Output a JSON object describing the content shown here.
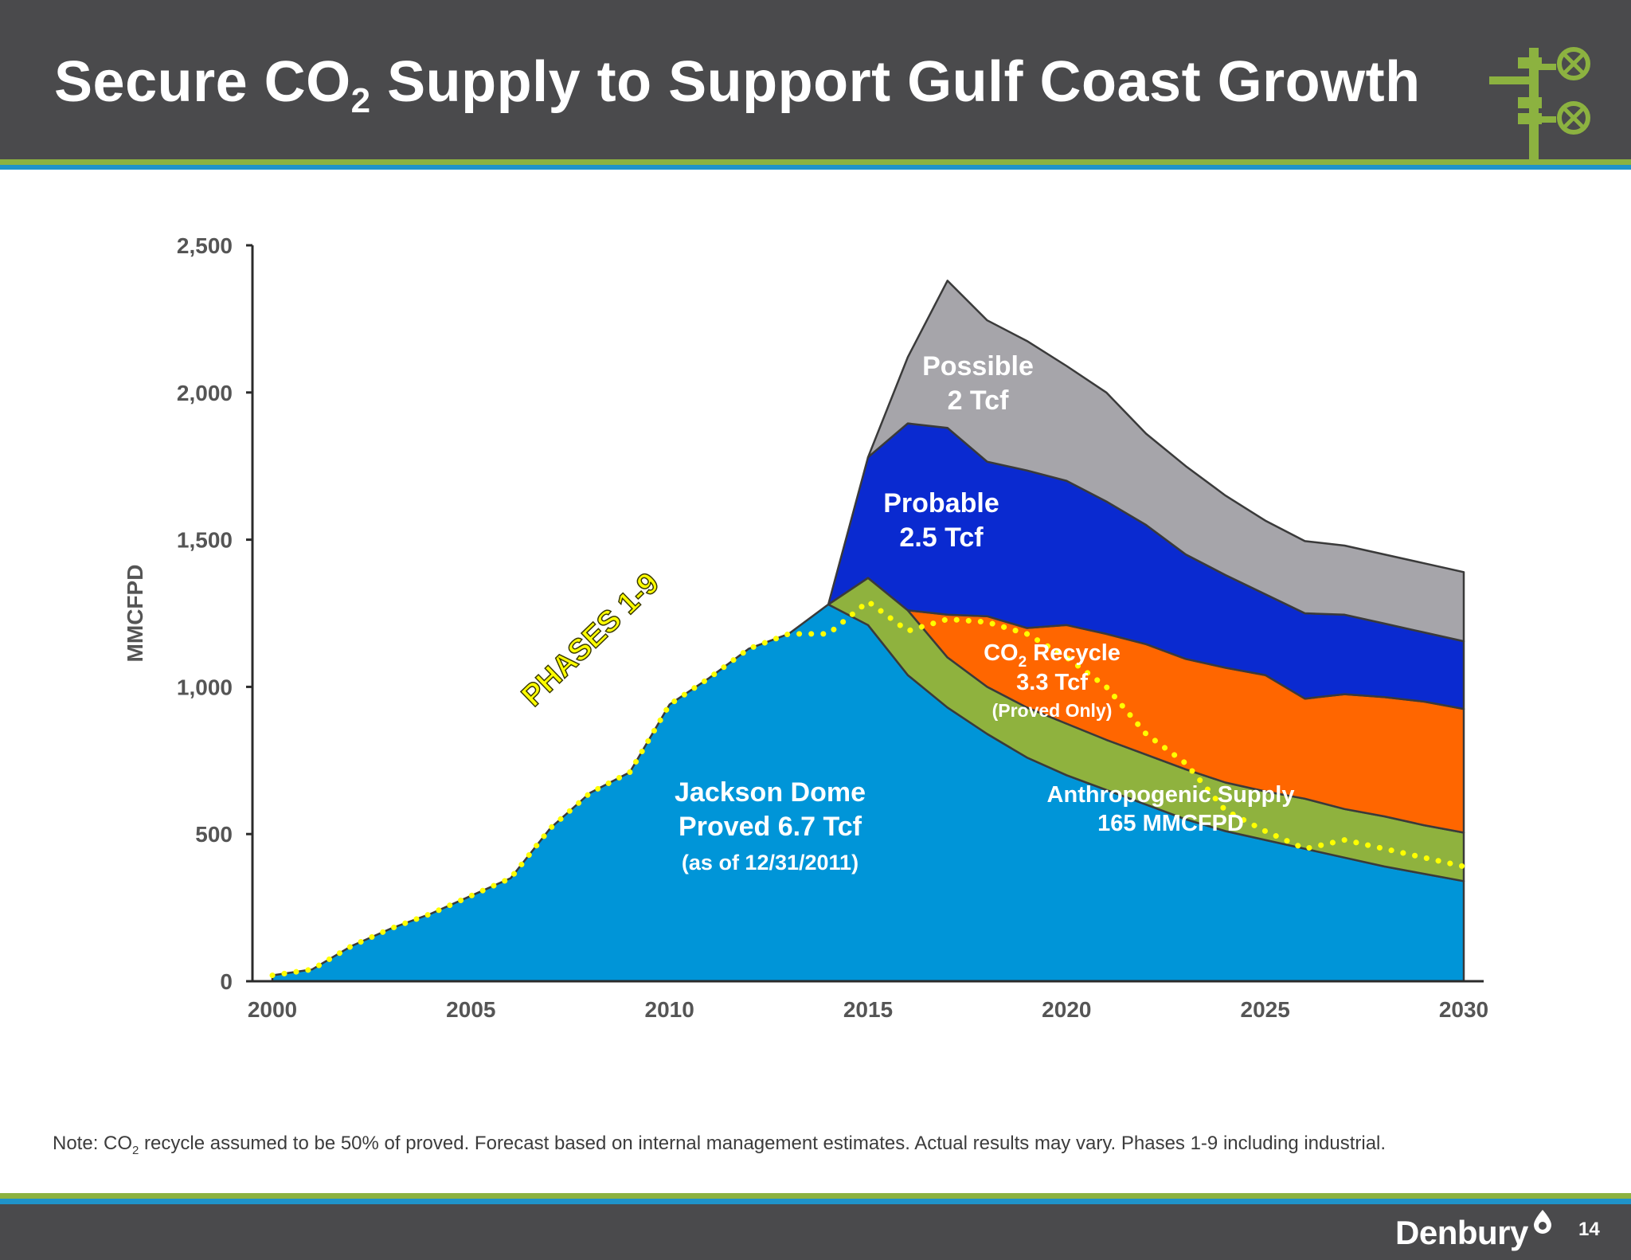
{
  "header": {
    "title_before": "Secure CO",
    "title_sub": "2",
    "title_after": " Supply to Support Gulf Coast Growth",
    "logo_icon": "pipeline-valve-icon"
  },
  "colors": {
    "header_bg": "#4a4a4c",
    "stripe_green": "#8cb240",
    "stripe_blue": "#1f93c9",
    "jackson": "#0095d8",
    "anthropogenic": "#8fb23e",
    "recycle": "#ff6600",
    "probable": "#0a2ad0",
    "possible": "#a6a5aa",
    "phases_line": "#ffff00"
  },
  "chart_data": {
    "type": "area",
    "stacked": true,
    "xlabel": "",
    "ylabel": "MMCFPD",
    "xlim": [
      2000,
      2030
    ],
    "ylim": [
      0,
      2500
    ],
    "x_ticks": [
      2000,
      2005,
      2010,
      2015,
      2020,
      2025,
      2030
    ],
    "y_ticks": [
      0,
      500,
      1000,
      1500,
      2000,
      2500
    ],
    "grid": false,
    "x": [
      2000,
      2001,
      2002,
      2003,
      2004,
      2005,
      2006,
      2007,
      2008,
      2009,
      2010,
      2011,
      2012,
      2013,
      2014,
      2015,
      2016,
      2017,
      2018,
      2019,
      2020,
      2021,
      2022,
      2023,
      2024,
      2025,
      2026,
      2027,
      2028,
      2029,
      2030
    ],
    "series": [
      {
        "name": "Jackson Dome",
        "values": [
          20,
          40,
          120,
          180,
          230,
          290,
          350,
          520,
          640,
          710,
          940,
          1030,
          1130,
          1180,
          1280,
          1210,
          1040,
          930,
          840,
          760,
          700,
          650,
          600,
          550,
          510,
          480,
          450,
          420,
          390,
          365,
          340
        ]
      },
      {
        "name": "Anthropogenic Supply",
        "values": [
          0,
          0,
          0,
          0,
          0,
          0,
          0,
          0,
          0,
          0,
          0,
          0,
          0,
          0,
          0,
          160,
          220,
          170,
          160,
          170,
          175,
          170,
          170,
          170,
          165,
          165,
          170,
          165,
          170,
          165,
          165
        ]
      },
      {
        "name": "CO2 Recycle",
        "values": [
          0,
          0,
          0,
          0,
          0,
          0,
          0,
          0,
          0,
          0,
          0,
          0,
          0,
          0,
          0,
          0,
          0,
          145,
          240,
          270,
          335,
          360,
          375,
          375,
          390,
          395,
          340,
          390,
          405,
          420,
          420
        ]
      },
      {
        "name": "Probable",
        "values": [
          0,
          0,
          0,
          0,
          0,
          0,
          0,
          0,
          0,
          0,
          0,
          0,
          0,
          0,
          0,
          410,
          635,
          635,
          525,
          535,
          490,
          450,
          405,
          355,
          315,
          275,
          290,
          270,
          250,
          235,
          230
        ]
      },
      {
        "name": "Possible",
        "values": [
          0,
          0,
          0,
          0,
          0,
          0,
          0,
          0,
          0,
          0,
          0,
          0,
          0,
          0,
          0,
          0,
          225,
          500,
          480,
          440,
          390,
          370,
          310,
          300,
          270,
          250,
          245,
          235,
          235,
          235,
          235
        ]
      }
    ],
    "phases_line": {
      "label": "PHASES 1-9",
      "x": [
        2000,
        2001,
        2002,
        2003,
        2004,
        2005,
        2006,
        2007,
        2008,
        2009,
        2010,
        2011,
        2012,
        2013,
        2014,
        2015,
        2016,
        2017,
        2018,
        2019,
        2020,
        2021,
        2022,
        2023,
        2024,
        2025,
        2026,
        2027,
        2028,
        2029,
        2030
      ],
      "y": [
        20,
        40,
        120,
        180,
        230,
        290,
        350,
        520,
        640,
        710,
        940,
        1030,
        1130,
        1180,
        1180,
        1290,
        1190,
        1230,
        1220,
        1180,
        1100,
        1000,
        840,
        740,
        580,
        510,
        450,
        480,
        450,
        420,
        390
      ]
    },
    "annotations": {
      "jackson": [
        "Jackson Dome",
        "Proved 6.7 Tcf",
        "(as of 12/31/2011)"
      ],
      "anthropogenic": [
        "Anthropogenic Supply",
        "165 MMCFPD"
      ],
      "recycle_co": "CO",
      "recycle_sub": "2",
      "recycle_rest": " Recycle",
      "recycle_lines": [
        "3.3 Tcf",
        "(Proved Only)"
      ],
      "probable": [
        "Probable",
        "2.5 Tcf"
      ],
      "possible": [
        "Possible",
        "2 Tcf"
      ]
    }
  },
  "note": {
    "before": "Note: CO",
    "sub": "2",
    "after": " recycle assumed to be 50% of proved.  Forecast based on internal management estimates.  Actual results may vary. Phases 1-9 including industrial."
  },
  "footer": {
    "brand": "Denbury",
    "brand_icon": "drop-icon",
    "page_number": "14"
  }
}
